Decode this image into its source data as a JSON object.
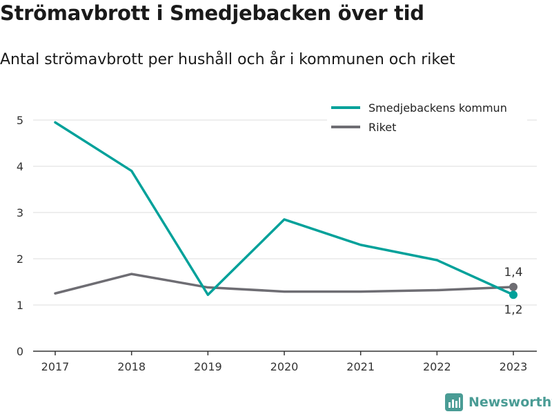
{
  "title": "Strömavbrott i Smedjebacken över tid",
  "subtitle": "Antal strömavbrott per hushåll och år i kommunen och riket",
  "brand": {
    "name": "Newsworthy",
    "icon": "newsworthy-logo-icon",
    "color": "#4a9c95"
  },
  "chart_data": {
    "type": "line",
    "x": [
      "2017",
      "2018",
      "2019",
      "2020",
      "2021",
      "2022",
      "2023"
    ],
    "ylim": [
      0,
      5
    ],
    "yticks": [
      0,
      1,
      2,
      3,
      4,
      5
    ],
    "grid": true,
    "legend_position": "top-right",
    "series": [
      {
        "name": "Smedjebackens kommun",
        "color": "#00a19a",
        "values": [
          4.95,
          3.9,
          1.22,
          2.85,
          2.3,
          1.97,
          1.22
        ],
        "end_label": "1,2"
      },
      {
        "name": "Riket",
        "color": "#6e6d73",
        "values": [
          1.25,
          1.67,
          1.38,
          1.29,
          1.29,
          1.32,
          1.39
        ],
        "end_label": "1,4"
      }
    ]
  }
}
